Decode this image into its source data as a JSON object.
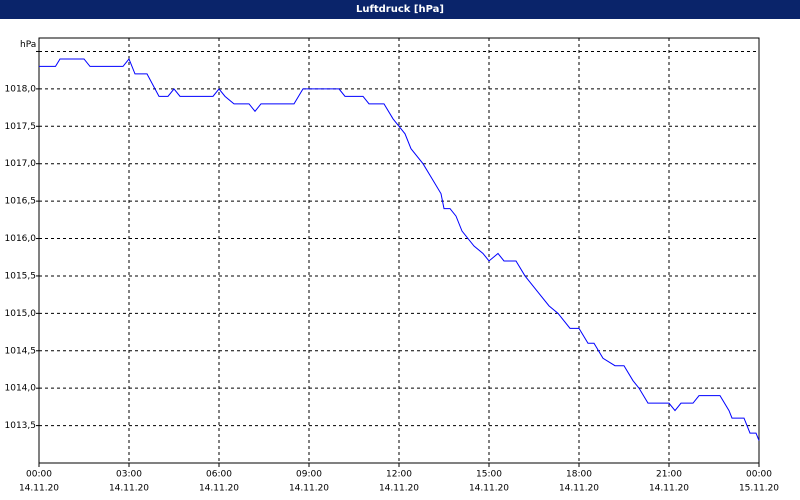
{
  "chart_data": {
    "type": "line",
    "title": "Luftdruck [hPa]",
    "x": [
      0,
      0.55,
      0.7,
      1.5,
      1.7,
      2.8,
      3.0,
      3.2,
      3.6,
      4.0,
      4.3,
      4.5,
      4.7,
      5.8,
      6.0,
      6.2,
      6.5,
      7.0,
      7.2,
      7.4,
      8.5,
      8.8,
      10.0,
      10.2,
      10.8,
      11.0,
      11.5,
      11.8,
      12.0,
      12.2,
      12.4,
      12.8,
      13.1,
      13.4,
      13.5,
      13.7,
      13.9,
      14.1,
      14.5,
      14.8,
      15.0,
      15.3,
      15.5,
      15.9,
      16.2,
      16.6,
      17.0,
      17.3,
      17.7,
      18.0,
      18.3,
      18.5,
      18.8,
      19.2,
      19.5,
      19.8,
      20.0,
      20.3,
      21.0,
      21.2,
      21.4,
      21.8,
      22.0,
      22.7,
      23.0,
      23.1,
      23.5,
      23.7,
      23.9,
      24.0
    ],
    "series": [
      {
        "name": "Luftdruck",
        "color": "#0000ff",
        "values": [
          1018.3,
          1018.3,
          1018.4,
          1018.4,
          1018.3,
          1018.3,
          1018.4,
          1018.2,
          1018.2,
          1017.9,
          1017.9,
          1018.0,
          1017.9,
          1017.9,
          1018.0,
          1017.9,
          1017.8,
          1017.8,
          1017.7,
          1017.8,
          1017.8,
          1018.0,
          1018.0,
          1017.9,
          1017.9,
          1017.8,
          1017.8,
          1017.6,
          1017.5,
          1017.4,
          1017.2,
          1017.0,
          1016.8,
          1016.6,
          1016.4,
          1016.4,
          1016.3,
          1016.1,
          1015.9,
          1015.8,
          1015.7,
          1015.8,
          1015.7,
          1015.7,
          1015.5,
          1015.3,
          1015.1,
          1015.0,
          1014.8,
          1014.8,
          1014.6,
          1014.6,
          1014.4,
          1014.3,
          1014.3,
          1014.1,
          1014.0,
          1013.8,
          1013.8,
          1013.7,
          1013.8,
          1013.8,
          1013.9,
          1013.9,
          1013.7,
          1013.6,
          1013.6,
          1013.4,
          1013.4,
          1013.3
        ]
      }
    ],
    "xlim": [
      0,
      24
    ],
    "xticks": [
      {
        "value": 0,
        "label": "00:00"
      },
      {
        "value": 3,
        "label": "03:00"
      },
      {
        "value": 6,
        "label": "06:00"
      },
      {
        "value": 9,
        "label": "09:00"
      },
      {
        "value": 12,
        "label": "12:00"
      },
      {
        "value": 15,
        "label": "15:00"
      },
      {
        "value": 18,
        "label": "18:00"
      },
      {
        "value": 21,
        "label": "21:00"
      },
      {
        "value": 24,
        "label": "00:00"
      }
    ],
    "xtick_dates": [
      "14.11.20",
      "14.11.20",
      "14.11.20",
      "14.11.20",
      "14.11.20",
      "14.11.20",
      "14.11.20",
      "14.11.20",
      "15.11.20"
    ],
    "ylim": [
      1013.0,
      1018.68
    ],
    "yticks": [
      {
        "value": 1013.5,
        "label": "1013,5"
      },
      {
        "value": 1014.0,
        "label": "1014,0"
      },
      {
        "value": 1014.5,
        "label": "1014,5"
      },
      {
        "value": 1015.0,
        "label": "1015,0"
      },
      {
        "value": 1015.5,
        "label": "1015,5"
      },
      {
        "value": 1016.0,
        "label": "1016,0"
      },
      {
        "value": 1016.5,
        "label": "1016,5"
      },
      {
        "value": 1017.0,
        "label": "1017,0"
      },
      {
        "value": 1017.5,
        "label": "1017,5"
      },
      {
        "value": 1018.0,
        "label": "1018,0"
      },
      {
        "value": 1018.5,
        "label": "hPa"
      }
    ],
    "grid": true
  }
}
